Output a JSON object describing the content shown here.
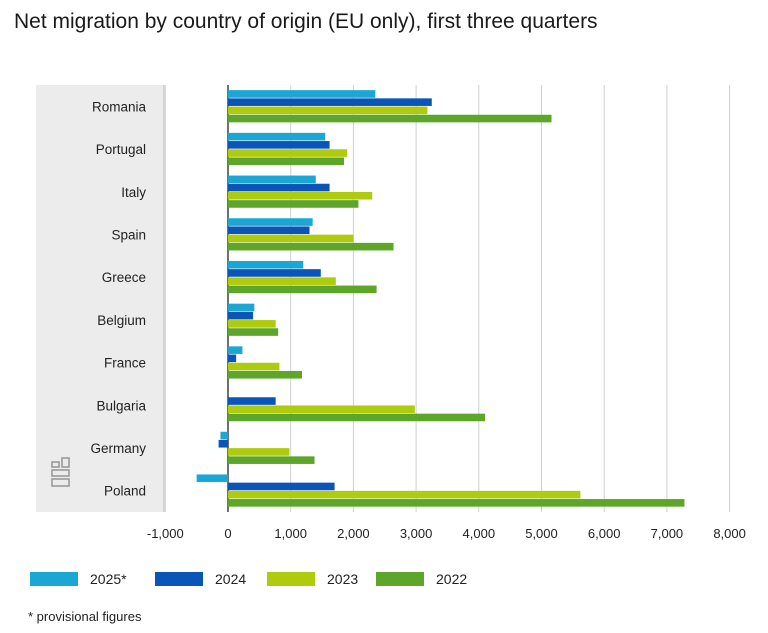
{
  "title": "Net migration by country of origin (EU only), first three quarters",
  "footnote": "* provisional figures",
  "colors": {
    "2025*": "#1aa7d4",
    "2024": "#0b55b8",
    "2023": "#afcb0d",
    "2022": "#5ea62a"
  },
  "logo": "cbs-logo",
  "chart_data": {
    "type": "bar",
    "orientation": "horizontal",
    "categories": [
      "Romania",
      "Portugal",
      "Italy",
      "Spain",
      "Greece",
      "Belgium",
      "France",
      "Bulgaria",
      "Germany",
      "Poland"
    ],
    "series": [
      {
        "name": "2025*",
        "color": "#1aa7d4",
        "values": [
          2350,
          1550,
          1400,
          1350,
          1200,
          420,
          230,
          null,
          -120,
          -500
        ]
      },
      {
        "name": "2024",
        "color": "#0b55b8",
        "values": [
          3250,
          1620,
          1620,
          1300,
          1480,
          400,
          130,
          760,
          -150,
          1700
        ]
      },
      {
        "name": "2023",
        "color": "#afcb0d",
        "values": [
          3180,
          1900,
          2300,
          2000,
          1720,
          760,
          820,
          2980,
          980,
          5620
        ]
      },
      {
        "name": "2022",
        "color": "#5ea62a",
        "values": [
          5160,
          1850,
          2080,
          2640,
          2370,
          800,
          1180,
          4100,
          1380,
          7280
        ]
      }
    ],
    "xlim": [
      -1000,
      8000
    ],
    "xticks": [
      -1000,
      0,
      1000,
      2000,
      3000,
      4000,
      5000,
      6000,
      7000,
      8000
    ],
    "xtick_labels": [
      "-1,000",
      "0",
      "1,000",
      "2,000",
      "3,000",
      "4,000",
      "5,000",
      "6,000",
      "7,000",
      "8,000"
    ],
    "grid": "vertical",
    "legend_position": "bottom"
  }
}
